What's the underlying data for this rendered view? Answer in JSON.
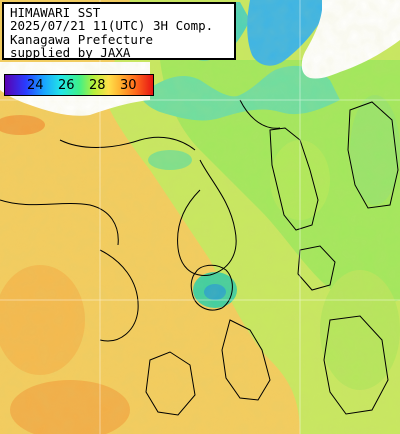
{
  "title": {
    "line1": "HIMAWARI SST",
    "line2": "2025/07/21 11(UTC) 3H Comp.",
    "line3": "Kanagawa Prefecture",
    "line4": "supplied by JAXA"
  },
  "colorbar": {
    "ticks": [
      "24",
      "26",
      "28",
      "30"
    ]
  },
  "colors": {
    "land": "#ffffff",
    "cool_water": "#56d7b4",
    "mid_water": "#a8ee58",
    "warm_water": "#f4c65a",
    "contour": "#000000",
    "grid": "#ffffff"
  }
}
